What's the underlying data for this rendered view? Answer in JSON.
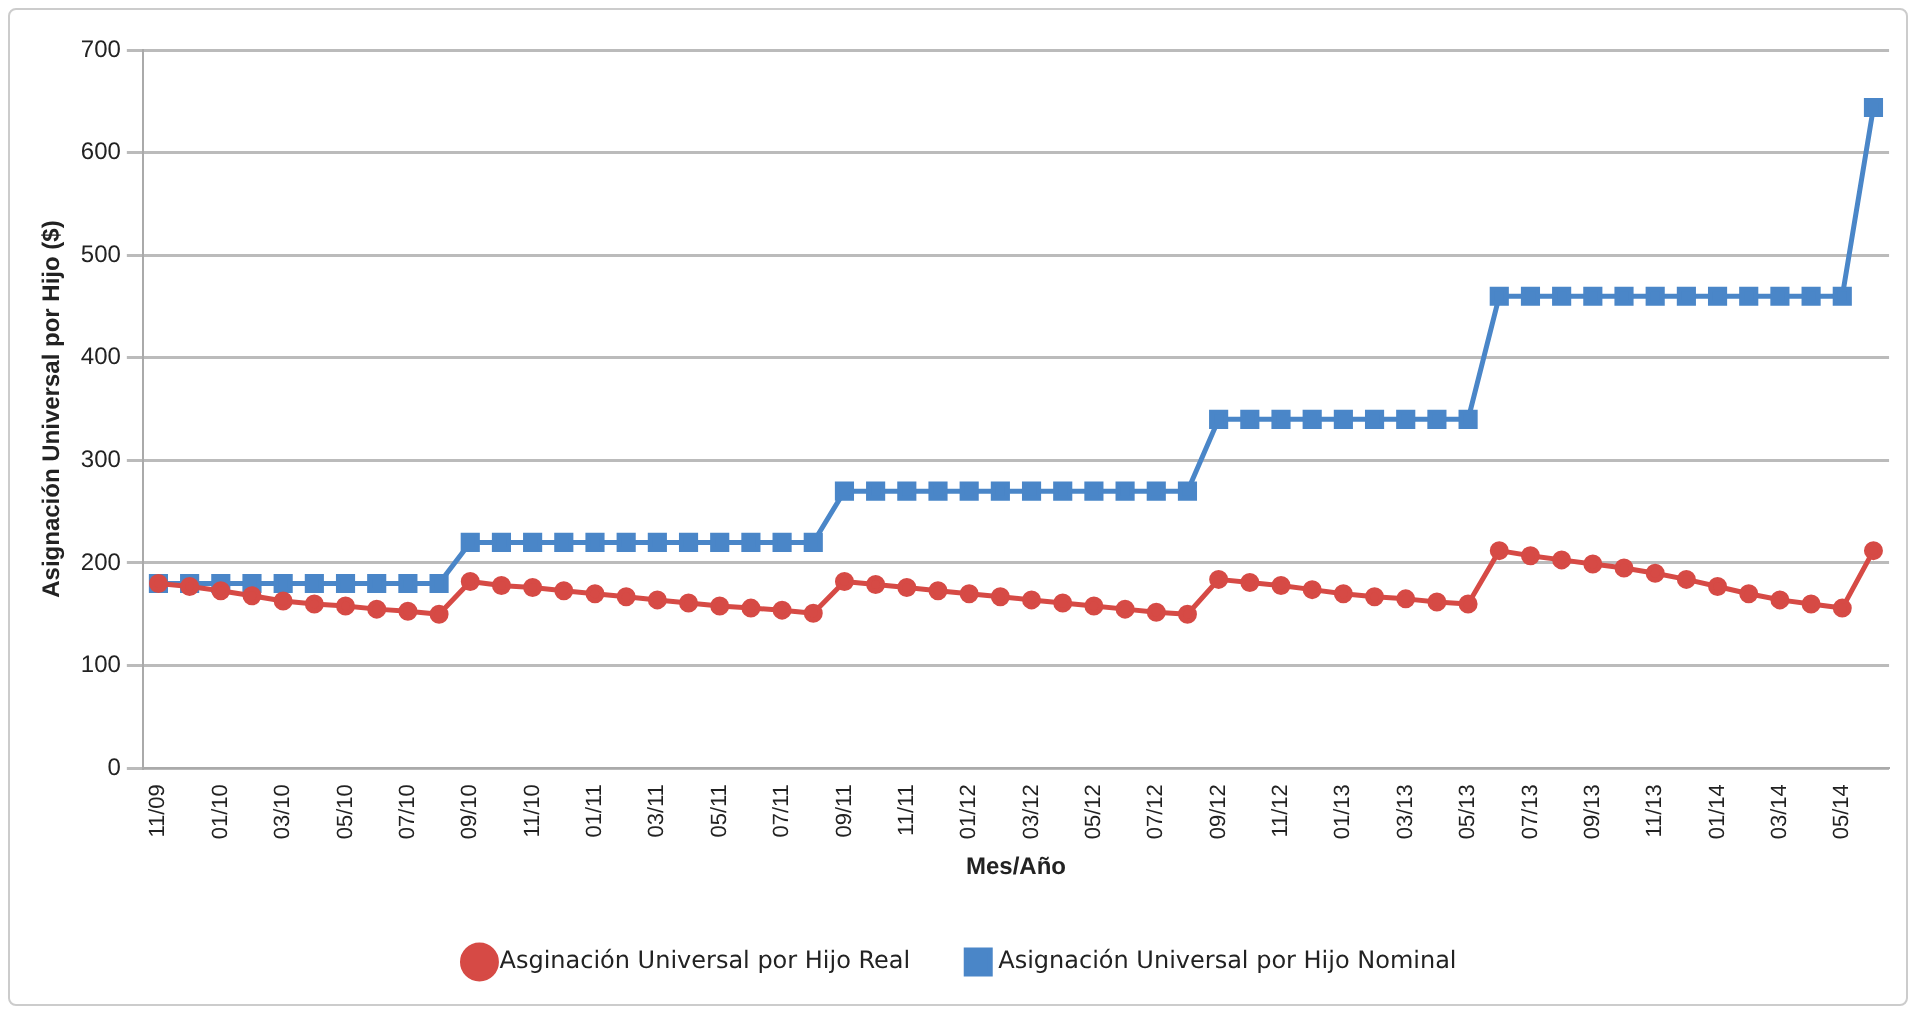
{
  "chart_data": {
    "type": "line",
    "xlabel": "Mes/Año",
    "ylabel": "Asignación Universal por Hijo ($)",
    "categories": [
      "11/09",
      null,
      "01/10",
      null,
      "03/10",
      null,
      "05/10",
      null,
      "07/10",
      null,
      "09/10",
      null,
      "11/10",
      null,
      "01/11",
      null,
      "03/11",
      null,
      "05/11",
      null,
      "07/11",
      null,
      "09/11",
      null,
      "11/11",
      null,
      "01/12",
      null,
      "03/12",
      null,
      "05/12",
      null,
      "07/12",
      null,
      "09/12",
      null,
      "11/12",
      null,
      "01/13",
      null,
      "03/13",
      null,
      "05/13",
      null,
      "07/13",
      null,
      "09/13",
      null,
      "11/13",
      null,
      "01/14",
      null,
      "03/14",
      null,
      "05/14",
      null
    ],
    "series": [
      {
        "name": "Asignación Universal por Hijo Nominal",
        "color": "#4a86c8",
        "marker": "square",
        "values": [
          180,
          180,
          180,
          180,
          180,
          180,
          180,
          180,
          180,
          180,
          220,
          220,
          220,
          220,
          220,
          220,
          220,
          220,
          220,
          220,
          220,
          220,
          270,
          270,
          270,
          270,
          270,
          270,
          270,
          270,
          270,
          270,
          270,
          270,
          340,
          340,
          340,
          340,
          340,
          340,
          340,
          340,
          340,
          460,
          460,
          460,
          460,
          460,
          460,
          460,
          460,
          460,
          460,
          460,
          460,
          644
        ]
      },
      {
        "name": "Asginación Universal por Hijo Real",
        "color": "#d64a45",
        "marker": "circle",
        "values": [
          180,
          177,
          173,
          168,
          163,
          160,
          158,
          155,
          153,
          150,
          182,
          178,
          176,
          173,
          170,
          167,
          164,
          161,
          158,
          156,
          154,
          151,
          182,
          179,
          176,
          173,
          170,
          167,
          164,
          161,
          158,
          155,
          152,
          150,
          184,
          181,
          178,
          174,
          170,
          167,
          165,
          162,
          160,
          212,
          207,
          203,
          199,
          195,
          190,
          184,
          177,
          170,
          164,
          160,
          156,
          212
        ]
      }
    ],
    "ylim": [
      0,
      700
    ],
    "yticks": [
      0,
      100,
      200,
      300,
      400,
      500,
      600,
      700
    ],
    "grid": "y",
    "legend": "bottom",
    "line_style": "solid"
  }
}
